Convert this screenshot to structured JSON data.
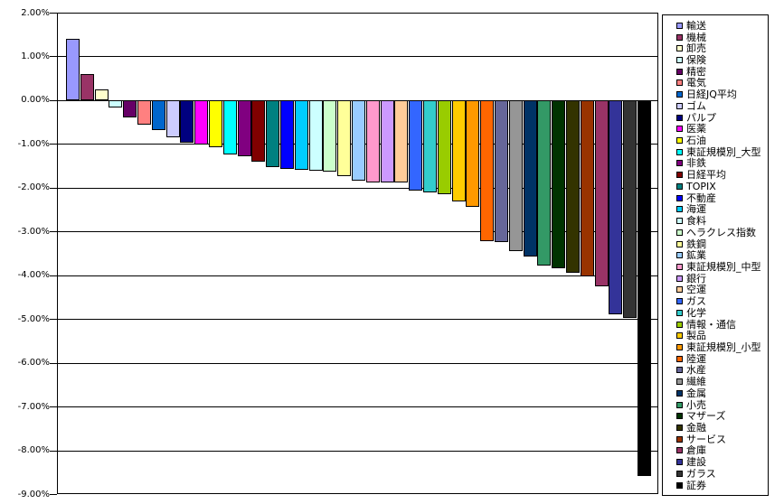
{
  "chart_data": {
    "type": "bar",
    "title": "",
    "xlabel": "",
    "ylabel": "",
    "ylim": [
      -9,
      2
    ],
    "ytick_values": [
      2,
      1,
      0,
      -1,
      -2,
      -3,
      -4,
      -5,
      -6,
      -7,
      -8,
      -9
    ],
    "ytick_labels": [
      "2.00%",
      "1.00%",
      "0.00%",
      "-1.00%",
      "-2.00%",
      "-3.00%",
      "-4.00%",
      "-5.00%",
      "-6.00%",
      "-7.00%",
      "-8.00%",
      "-9.00%"
    ],
    "grid": "horizontal",
    "legend_position": "right",
    "value_unit": "percent",
    "series": [
      {
        "name": "輸送",
        "value": 1.42,
        "color": "#9999FF"
      },
      {
        "name": "機械",
        "value": 0.62,
        "color": "#993366"
      },
      {
        "name": "卸売",
        "value": 0.27,
        "color": "#FFFFCC"
      },
      {
        "name": "保険",
        "value": -0.15,
        "color": "#CCFFFF"
      },
      {
        "name": "精密",
        "value": -0.38,
        "color": "#660066"
      },
      {
        "name": "電気",
        "value": -0.53,
        "color": "#FF8080"
      },
      {
        "name": "日経JQ平均",
        "value": -0.66,
        "color": "#0066CC"
      },
      {
        "name": "ゴム",
        "value": -0.82,
        "color": "#CCCCFF"
      },
      {
        "name": "パルプ",
        "value": -0.95,
        "color": "#000080"
      },
      {
        "name": "医薬",
        "value": -1.0,
        "color": "#FF00FF"
      },
      {
        "name": "石油",
        "value": -1.06,
        "color": "#FFFF00"
      },
      {
        "name": "東証規模別_大型",
        "value": -1.21,
        "color": "#00FFFF"
      },
      {
        "name": "非鉄",
        "value": -1.27,
        "color": "#800080"
      },
      {
        "name": "日経平均",
        "value": -1.38,
        "color": "#800000"
      },
      {
        "name": "TOPIX",
        "value": -1.51,
        "color": "#008080"
      },
      {
        "name": "不動産",
        "value": -1.55,
        "color": "#0000FF"
      },
      {
        "name": "海運",
        "value": -1.57,
        "color": "#00CCFF"
      },
      {
        "name": "食料",
        "value": -1.59,
        "color": "#CCFFFF"
      },
      {
        "name": "ヘラクレス指数",
        "value": -1.61,
        "color": "#CCFFCC"
      },
      {
        "name": "鉄鋼",
        "value": -1.72,
        "color": "#FFFF99"
      },
      {
        "name": "鉱業",
        "value": -1.81,
        "color": "#99CCFF"
      },
      {
        "name": "東証規模別_中型",
        "value": -1.85,
        "color": "#FF99CC"
      },
      {
        "name": "銀行",
        "value": -1.85,
        "color": "#CC99FF"
      },
      {
        "name": "空運",
        "value": -1.86,
        "color": "#FFCC99"
      },
      {
        "name": "ガス",
        "value": -2.04,
        "color": "#3366FF"
      },
      {
        "name": "化学",
        "value": -2.09,
        "color": "#33CCCC"
      },
      {
        "name": "情報・通信",
        "value": -2.12,
        "color": "#99CC00"
      },
      {
        "name": "製品",
        "value": -2.29,
        "color": "#FFCC00"
      },
      {
        "name": "東証規模別_小型",
        "value": -2.41,
        "color": "#FF9900"
      },
      {
        "name": "陸運",
        "value": -3.2,
        "color": "#FF6600"
      },
      {
        "name": "水産",
        "value": -3.22,
        "color": "#666699"
      },
      {
        "name": "繊維",
        "value": -3.42,
        "color": "#969696"
      },
      {
        "name": "金属",
        "value": -3.56,
        "color": "#003366"
      },
      {
        "name": "小売",
        "value": -3.76,
        "color": "#339966"
      },
      {
        "name": "マザーズ",
        "value": -3.82,
        "color": "#003300"
      },
      {
        "name": "金融",
        "value": -3.93,
        "color": "#333300"
      },
      {
        "name": "サービス",
        "value": -4.01,
        "color": "#993300"
      },
      {
        "name": "倉庫",
        "value": -4.23,
        "color": "#993366"
      },
      {
        "name": "建設",
        "value": -4.87,
        "color": "#333399"
      },
      {
        "name": "ガラス",
        "value": -4.95,
        "color": "#333333"
      },
      {
        "name": "証券",
        "value": -8.56,
        "color": "#000000"
      }
    ]
  },
  "colors": {
    "background": "#FFFFFF",
    "axis": "#000000",
    "gridline": "#000000",
    "text": "#000000"
  }
}
